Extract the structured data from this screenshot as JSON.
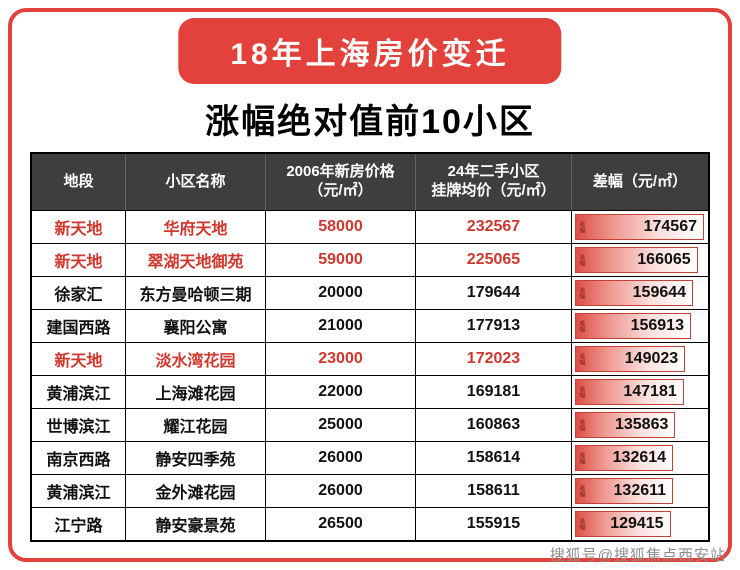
{
  "banner": {
    "title": "18年上海房价变迁"
  },
  "subtitle": "涨幅绝对值前10小区",
  "watermark": "搜狐号@搜狐焦点西安站",
  "colors": {
    "accent_red": "#e2423b",
    "header_bg": "#3e3e3e",
    "highlight_text": "#d0372e",
    "bar_gradient_start": "#dd4f46",
    "bar_gradient_end": "#ffffff"
  },
  "table": {
    "bar_tag": "差幅",
    "headers": [
      {
        "line1": "地段",
        "line2": ""
      },
      {
        "line1": "小区名称",
        "line2": ""
      },
      {
        "line1": "2006年新房价格",
        "line2": "（元/㎡）"
      },
      {
        "line1": "24年二手小区",
        "line2": "挂牌均价（元/㎡）"
      },
      {
        "line1": "差幅（元/㎡）",
        "line2": ""
      }
    ],
    "rows": [
      {
        "district": "新天地",
        "community": "华府天地",
        "price2006": "58000",
        "price2024": "232567",
        "diff": "174567",
        "highlight": true
      },
      {
        "district": "新天地",
        "community": "翠湖天地御苑",
        "price2006": "59000",
        "price2024": "225065",
        "diff": "166065",
        "highlight": true
      },
      {
        "district": "徐家汇",
        "community": "东方曼哈顿三期",
        "price2006": "20000",
        "price2024": "179644",
        "diff": "159644",
        "highlight": false
      },
      {
        "district": "建国西路",
        "community": "襄阳公寓",
        "price2006": "21000",
        "price2024": "177913",
        "diff": "156913",
        "highlight": false
      },
      {
        "district": "新天地",
        "community": "淡水湾花园",
        "price2006": "23000",
        "price2024": "172023",
        "diff": "149023",
        "highlight": true
      },
      {
        "district": "黄浦滨江",
        "community": "上海滩花园",
        "price2006": "22000",
        "price2024": "169181",
        "diff": "147181",
        "highlight": false
      },
      {
        "district": "世博滨江",
        "community": "耀江花园",
        "price2006": "25000",
        "price2024": "160863",
        "diff": "135863",
        "highlight": false
      },
      {
        "district": "南京西路",
        "community": "静安四季苑",
        "price2006": "26000",
        "price2024": "158614",
        "diff": "132614",
        "highlight": false
      },
      {
        "district": "黄浦滨江",
        "community": "金外滩花园",
        "price2006": "26000",
        "price2024": "158611",
        "diff": "132611",
        "highlight": false
      },
      {
        "district": "江宁路",
        "community": "静安豪景苑",
        "price2006": "26500",
        "price2024": "155915",
        "diff": "129415",
        "highlight": false
      }
    ]
  },
  "chart_data": {
    "type": "table",
    "title": "18年上海房价变迁 — 涨幅绝对值前10小区",
    "columns": [
      "地段",
      "小区名称",
      "2006年新房价格（元/㎡）",
      "24年二手小区挂牌均价（元/㎡）",
      "差幅（元/㎡）"
    ],
    "rows": [
      [
        "新天地",
        "华府天地",
        58000,
        232567,
        174567
      ],
      [
        "新天地",
        "翠湖天地御苑",
        59000,
        225065,
        166065
      ],
      [
        "徐家汇",
        "东方曼哈顿三期",
        20000,
        179644,
        159644
      ],
      [
        "建国西路",
        "襄阳公寓",
        21000,
        177913,
        156913
      ],
      [
        "新天地",
        "淡水湾花园",
        23000,
        172023,
        149023
      ],
      [
        "黄浦滨江",
        "上海滩花园",
        22000,
        169181,
        147181
      ],
      [
        "世博滨江",
        "耀江花园",
        25000,
        160863,
        135863
      ],
      [
        "南京西路",
        "静安四季苑",
        26000,
        158614,
        132614
      ],
      [
        "黄浦滨江",
        "金外滩花园",
        26000,
        158611,
        132611
      ],
      [
        "江宁路",
        "静安豪景苑",
        26500,
        155915,
        129415
      ]
    ],
    "bar_column": "差幅（元/㎡）",
    "bar_range": [
      0,
      174567
    ],
    "notes": "差幅列以红白渐变条形图呈现，条长与差幅成正比；新天地所在行以红色文字高亮"
  }
}
